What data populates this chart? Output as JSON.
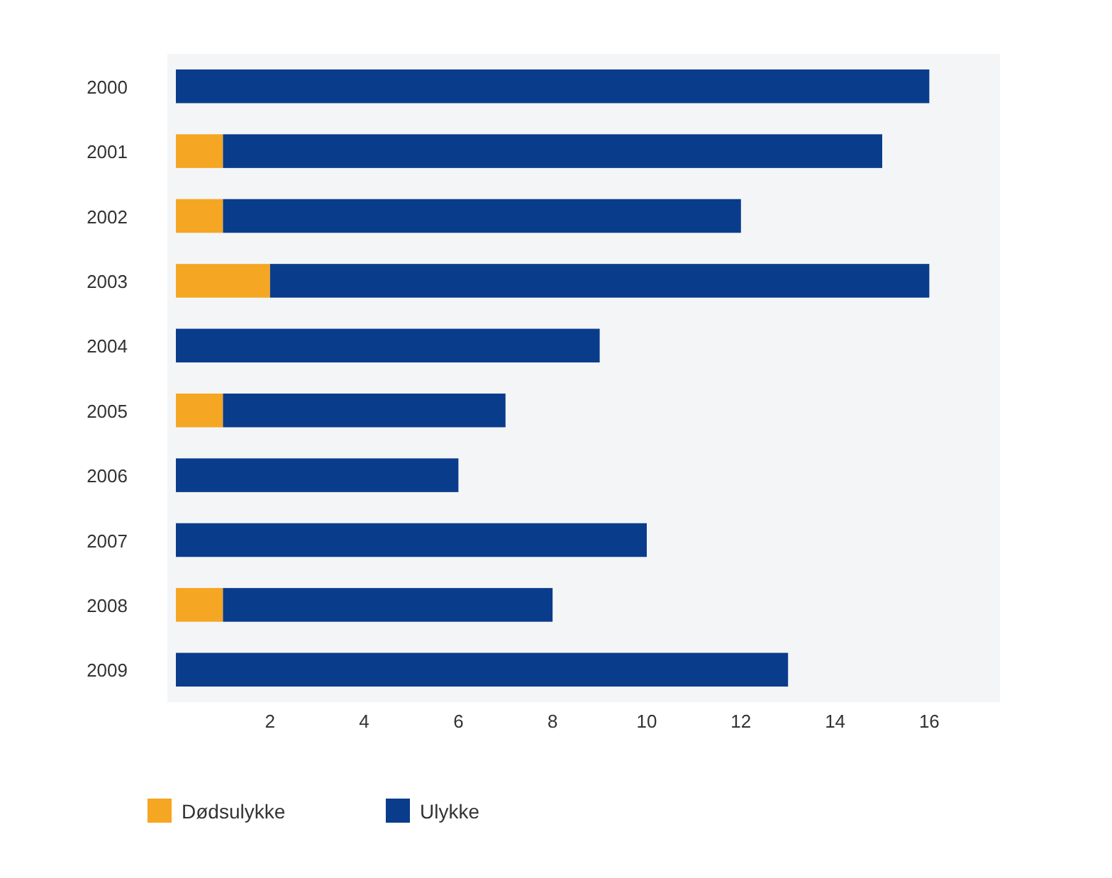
{
  "chart_data": {
    "type": "bar",
    "orientation": "horizontal",
    "stacked": true,
    "categories": [
      "2000",
      "2001",
      "2002",
      "2003",
      "2004",
      "2005",
      "2006",
      "2007",
      "2008",
      "2009"
    ],
    "series": [
      {
        "name": "Dødsulykke",
        "color": "#f5a623",
        "values": [
          0,
          1,
          1,
          2,
          0,
          1,
          0,
          0,
          1,
          0
        ]
      },
      {
        "name": "Ulykke",
        "color": "#0a3c8c",
        "values": [
          16,
          14,
          11,
          14,
          9,
          6,
          6,
          10,
          7,
          13
        ]
      }
    ],
    "xlim": [
      0,
      17.5
    ],
    "xticks": [
      2,
      4,
      6,
      8,
      10,
      12,
      14,
      16
    ],
    "legend": "bottom"
  }
}
